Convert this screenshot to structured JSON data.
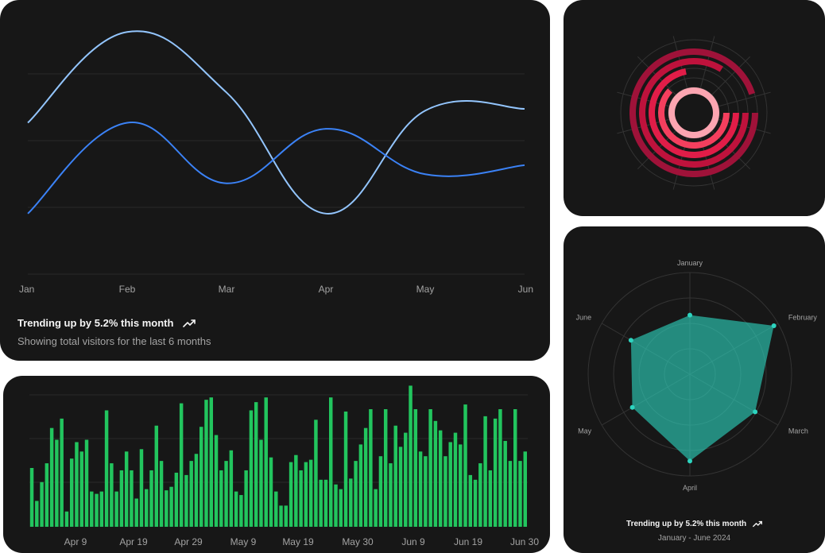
{
  "line_card": {
    "footer_title": "Trending up by 5.2% this month",
    "footer_subtitle": "Showing total visitors for the last 6 months",
    "trend_icon": "trending-up-icon"
  },
  "radar_card": {
    "footer_title": "Trending up by 5.2% this month",
    "footer_subtitle": "January - June 2024",
    "trend_icon": "trending-up-icon"
  },
  "colors": {
    "card_bg": "#171717",
    "line_series_1": "#93c5fd",
    "line_series_2": "#3b82f6",
    "bars": "#22c55e",
    "radar_fill": "#2dd4bf",
    "radial": [
      "#fca5b1",
      "#f43f5e",
      "#e11d48",
      "#be123c",
      "#9f1239"
    ]
  },
  "chart_data": [
    {
      "type": "line",
      "x": [
        "Jan",
        "Feb",
        "Mar",
        "Apr",
        "May",
        "Jun"
      ],
      "series": [
        {
          "values": [
            250,
            400,
            300,
            100,
            270,
            273
          ]
        },
        {
          "values": [
            100,
            250,
            150,
            240,
            165,
            180
          ]
        }
      ],
      "ylim": [
        0,
        420
      ],
      "grid": true,
      "legend": "none"
    },
    {
      "type": "bar",
      "x_ticks": [
        "Apr 9",
        "Apr 19",
        "Apr 29",
        "May 9",
        "May 19",
        "May 30",
        "Jun 9",
        "Jun 19",
        "Jun 30"
      ],
      "values": [
        50,
        22,
        38,
        54,
        84,
        74,
        92,
        13,
        58,
        72,
        64,
        74,
        30,
        28,
        30,
        99,
        54,
        30,
        48,
        64,
        48,
        24,
        66,
        32,
        48,
        86,
        56,
        31,
        34,
        46,
        105,
        44,
        56,
        62,
        85,
        108,
        110,
        78,
        48,
        56,
        65,
        30,
        27,
        48,
        99,
        106,
        74,
        110,
        59,
        30,
        18,
        18,
        55,
        61,
        48,
        55,
        57,
        91,
        40,
        40,
        110,
        36,
        32,
        98,
        41,
        56,
        70,
        84,
        100,
        32,
        60,
        100,
        54,
        86,
        68,
        80,
        120,
        100,
        64,
        60,
        100,
        90,
        82,
        60,
        72,
        80,
        70,
        104,
        44,
        40,
        54,
        94,
        48,
        92,
        100,
        73,
        56,
        100,
        56,
        64
      ],
      "ylim": [
        0,
        125
      ],
      "grid": true
    },
    {
      "type": "radial-bar",
      "series": [
        {
          "value": 100
        },
        {
          "value": 62
        },
        {
          "value": 72
        },
        {
          "value": 84
        },
        {
          "value": 95
        }
      ],
      "max": 100
    },
    {
      "type": "radar",
      "axes": [
        "January",
        "February",
        "March",
        "April",
        "May",
        "June"
      ],
      "values": [
        186,
        305,
        237,
        273,
        209,
        214
      ],
      "rlim": [
        0,
        320
      ]
    }
  ]
}
